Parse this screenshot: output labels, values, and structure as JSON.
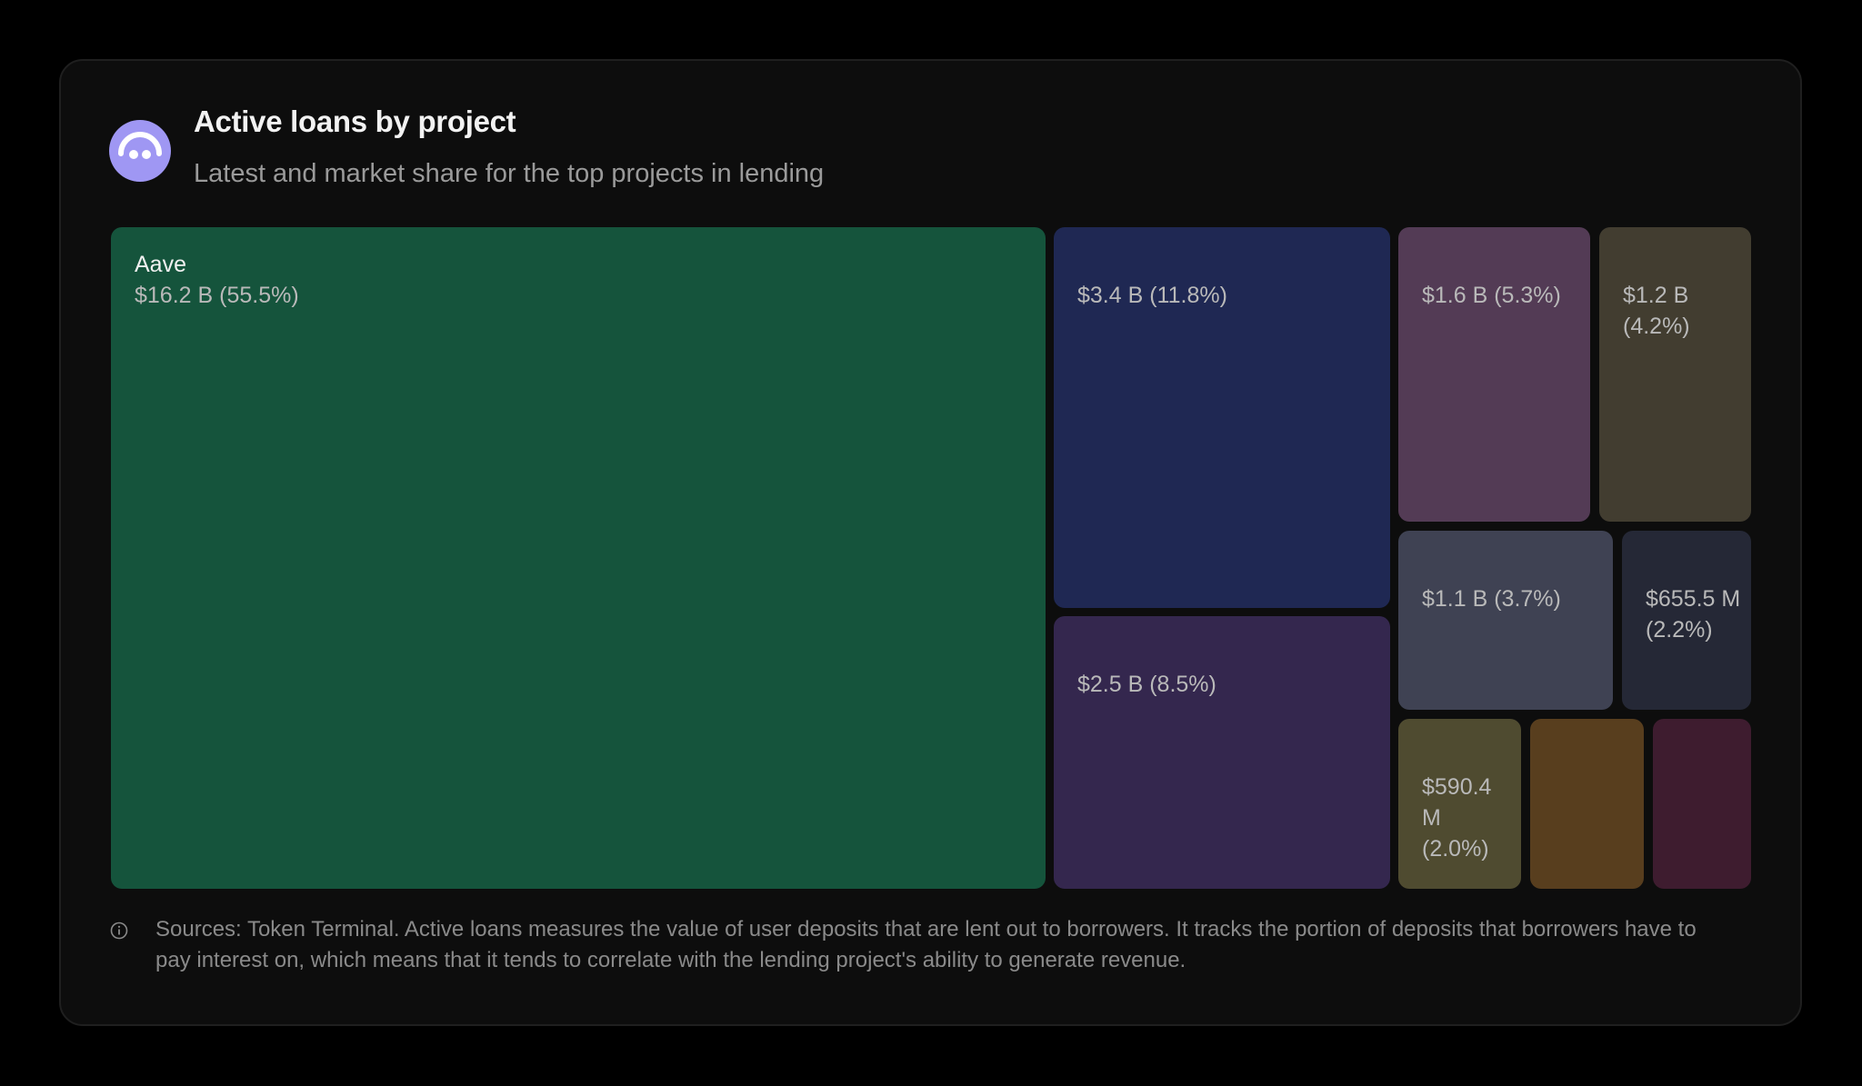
{
  "header": {
    "title": "Active loans by project",
    "subtitle": "Latest and market share for the top projects in lending"
  },
  "footer": {
    "source": "Sources: Token Terminal. Active loans measures the value of user deposits that are lent out to borrowers. It tracks the portion of deposits that borrowers have to pay interest on, which means that it tends to correlate with the lending project's ability to generate revenue."
  },
  "colors": {
    "logo": "#9f97f3",
    "background": "#0d0d0d"
  },
  "chart_data": {
    "type": "treemap",
    "title": "Active loans by project",
    "subtitle": "Latest and market share for the top projects in lending",
    "items": [
      {
        "name": "Aave",
        "label": "$16.2 B (55.5%)",
        "value": 16.2,
        "share": 55.5,
        "color": "#15543c"
      },
      {
        "name": "",
        "label": "$3.4 B (11.8%)",
        "value": 3.4,
        "share": 11.8,
        "color": "#1f2853"
      },
      {
        "name": "",
        "label": "$2.5 B (8.5%)",
        "value": 2.5,
        "share": 8.5,
        "color": "#34274e"
      },
      {
        "name": "",
        "label": "$1.6 B (5.3%)",
        "value": 1.6,
        "share": 5.3,
        "color": "#533b55"
      },
      {
        "name": "",
        "label": "$1.2 B (4.2%)",
        "value": 1.2,
        "share": 4.2,
        "color": "#423d30"
      },
      {
        "name": "",
        "label": "$1.1 B (3.7%)",
        "value": 1.1,
        "share": 3.7,
        "color": "#3f4253"
      },
      {
        "name": "",
        "label": "$655.5 M (2.2%)",
        "value": 0.6555,
        "share": 2.2,
        "color": "#252836"
      },
      {
        "name": "",
        "label": "$590.4 M (2.0%)",
        "value": 0.5904,
        "share": 2.0,
        "color": "#4f4b30"
      },
      {
        "name": "",
        "label": "",
        "value": null,
        "share": null,
        "color": "#583e1e"
      },
      {
        "name": "",
        "label": "",
        "value": null,
        "share": null,
        "color": "#3e1c2f"
      }
    ]
  }
}
